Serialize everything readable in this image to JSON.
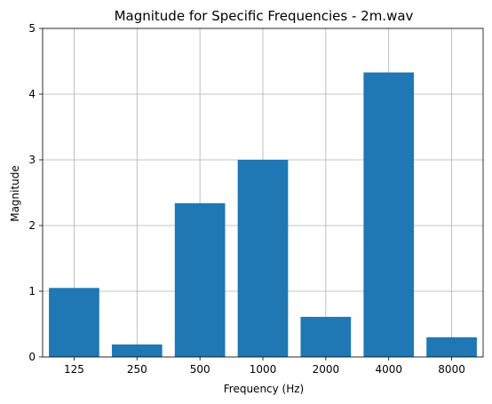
{
  "chart_data": {
    "type": "bar",
    "title": "Magnitude for Specific Frequencies - 2m.wav",
    "xlabel": "Frequency (Hz)",
    "ylabel": "Magnitude",
    "categories": [
      "125",
      "250",
      "500",
      "1000",
      "2000",
      "4000",
      "8000"
    ],
    "values": [
      1.05,
      0.19,
      2.34,
      3.0,
      0.61,
      4.33,
      0.3
    ],
    "ylim": [
      0,
      5
    ],
    "yticks": [
      "0",
      "1",
      "2",
      "3",
      "4",
      "5"
    ],
    "grid": true,
    "bar_color": "#1f77b4",
    "grid_color": "#b0b0b0"
  }
}
